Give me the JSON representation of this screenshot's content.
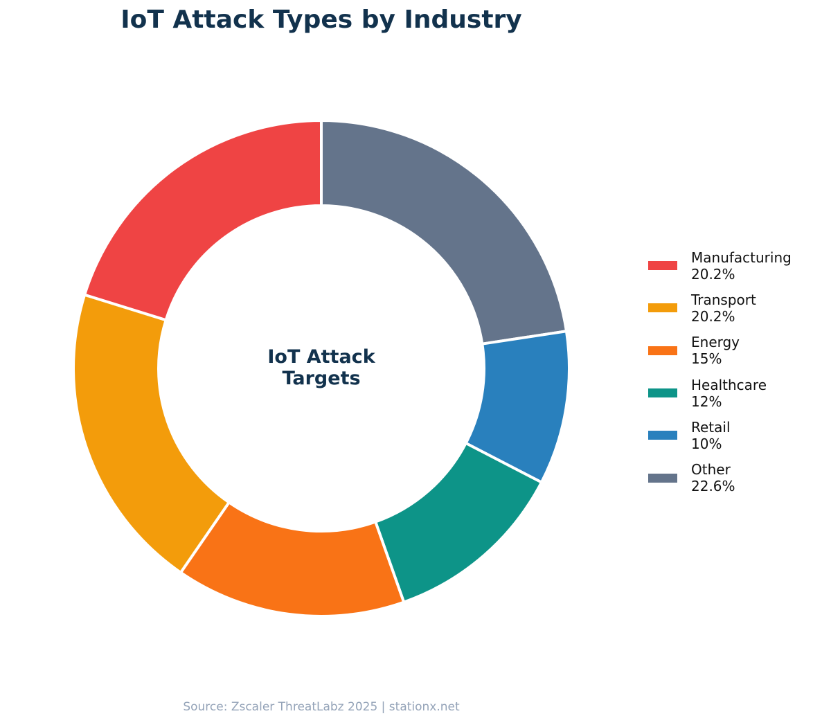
{
  "title": "IoT Attack Types by Industry",
  "center_label_line1": "IoT Attack",
  "center_label_line2": "Targets",
  "source": "Source: Zscaler ThreatLabz 2025 | stationx.net",
  "legend": [
    {
      "label": "Manufacturing",
      "value": "20.2%",
      "color": "#ef4444"
    },
    {
      "label": "Transport",
      "value": "20.2%",
      "color": "#f39c0b"
    },
    {
      "label": "Energy",
      "value": "15%",
      "color": "#f97316"
    },
    {
      "label": "Healthcare",
      "value": "12%",
      "color": "#0d9488"
    },
    {
      "label": "Retail",
      "value": "10%",
      "color": "#2980bd"
    },
    {
      "label": "Other",
      "value": "22.6%",
      "color": "#64748b"
    }
  ],
  "chart_data": {
    "type": "pie",
    "subtype": "donut",
    "title": "IoT Attack Types by Industry",
    "center_text": "IoT Attack Targets",
    "categories": [
      "Manufacturing",
      "Transport",
      "Energy",
      "Healthcare",
      "Retail",
      "Other"
    ],
    "values": [
      20.2,
      20.2,
      15,
      12,
      10,
      22.6
    ],
    "unit": "%",
    "colors": [
      "#ef4444",
      "#f39c0b",
      "#f97316",
      "#0d9488",
      "#2980bd",
      "#64748b"
    ],
    "draw_order_clockwise_from_top": [
      "Other",
      "Retail",
      "Healthcare",
      "Energy",
      "Transport",
      "Manufacturing"
    ],
    "legend_position": "right",
    "annotation": "Source: Zscaler ThreatLabz 2025 | stationx.net"
  }
}
